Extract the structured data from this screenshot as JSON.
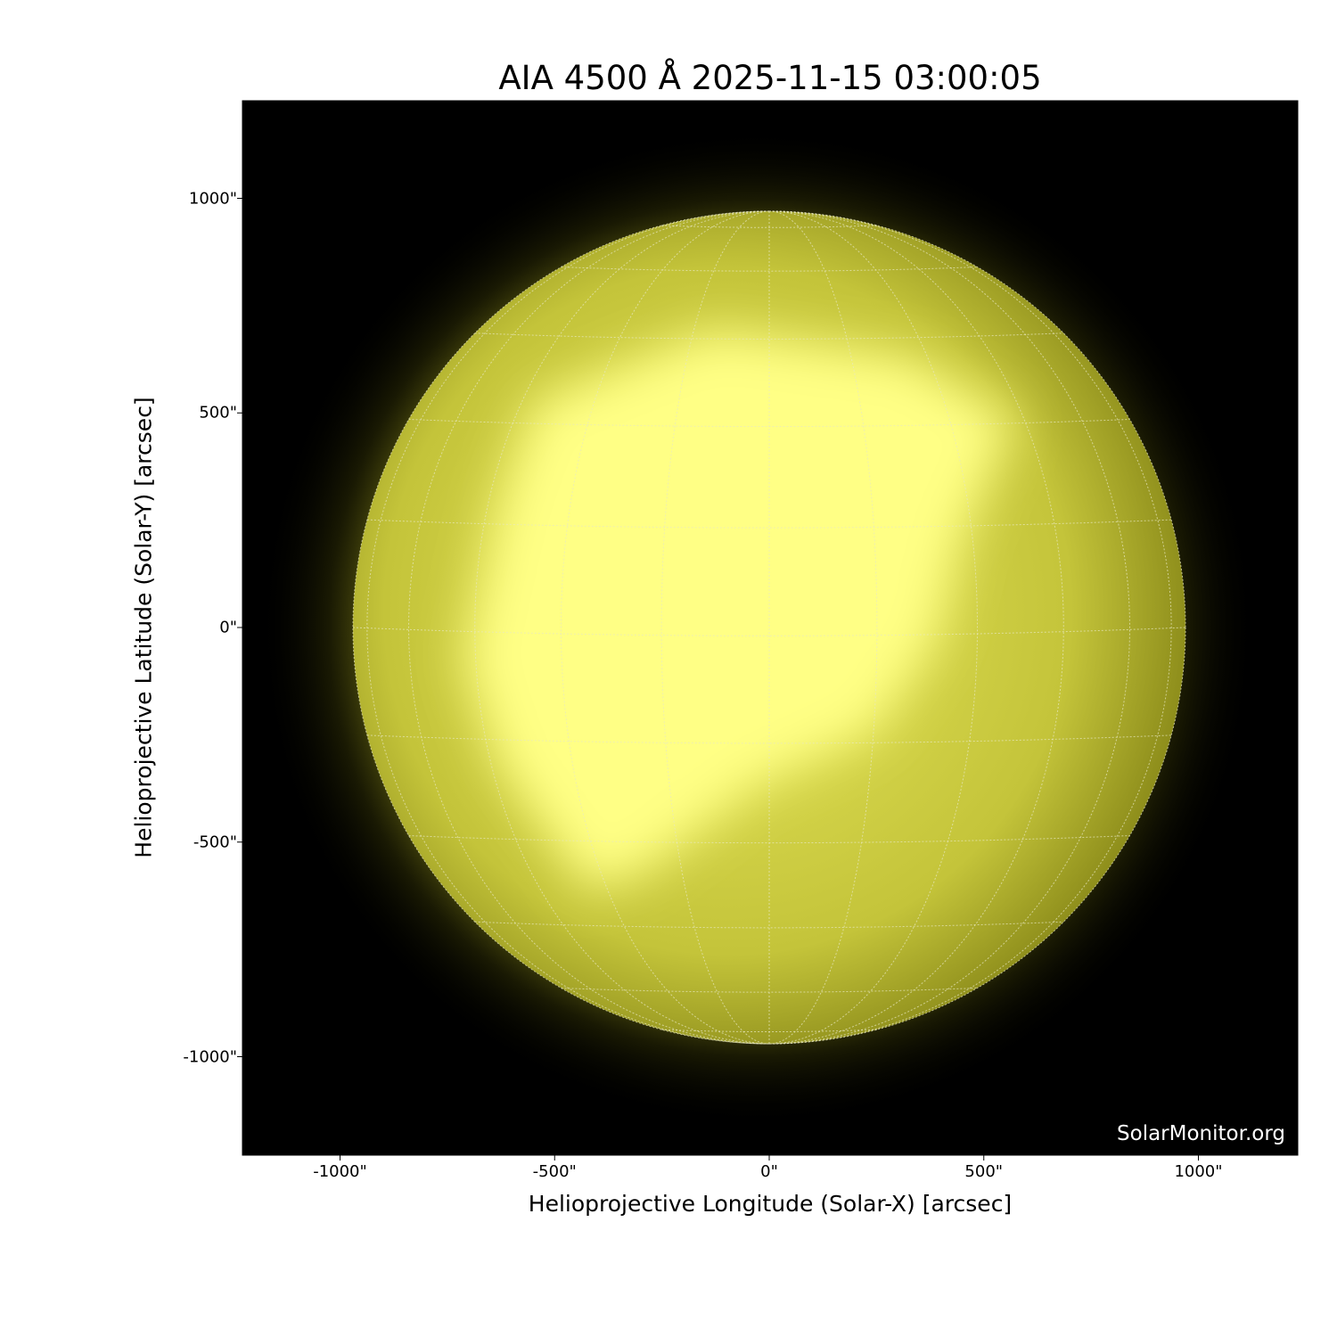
{
  "title": "AIA 4500 Å 2025-11-15 03:00:05",
  "watermark": "SolarMonitor.org",
  "xaxis": {
    "label": "Helioprojective Longitude (Solar-X) [arcsec]",
    "ticks": [
      "-1000\"",
      "-500\"",
      "0\"",
      "500\"",
      "1000\""
    ],
    "tick_values": [
      -1000,
      -500,
      0,
      500,
      1000
    ],
    "range": [
      -1230,
      1230
    ]
  },
  "yaxis": {
    "label": "Helioprojective Latitude (Solar-Y) [arcsec]",
    "ticks": [
      "1000\"",
      "500\"",
      "0\"",
      "-500\"",
      "-1000\""
    ],
    "tick_values": [
      1000,
      500,
      0,
      -500,
      -1000
    ],
    "range": [
      -1230,
      1230
    ]
  },
  "solar_radius_arcsec": 970,
  "grid_spacing_deg": 15,
  "colors": {
    "background": "#000000",
    "disk_dark": "#7a7a10",
    "disk_mid": "#c8c83a",
    "disk_bright": "#ffff80",
    "grid": "#e8e8c0"
  }
}
